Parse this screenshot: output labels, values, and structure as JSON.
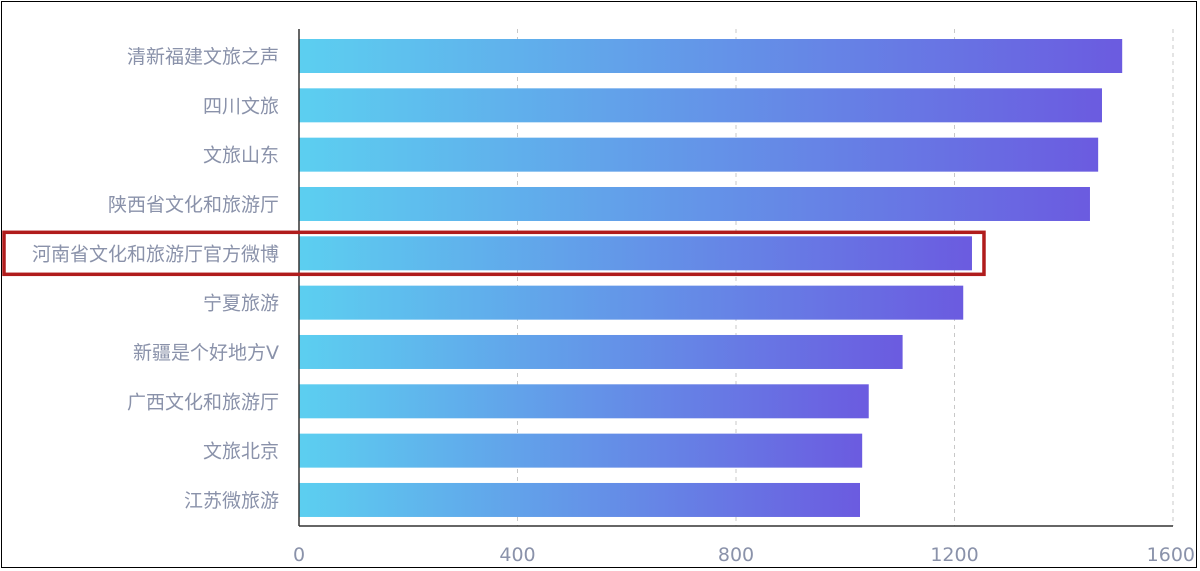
{
  "chart_data": {
    "type": "bar",
    "orientation": "horizontal",
    "categories": [
      "清新福建文旅之声",
      "四川文旅",
      "文旅山东",
      "陕西省文化和旅游厅",
      "河南省文化和旅游厅官方微博",
      "宁夏旅游",
      "新疆是个好地方V",
      "广西文化和旅游厅",
      "文旅北京",
      "江苏微旅游"
    ],
    "values": [
      1507,
      1470,
      1463,
      1448,
      1232,
      1216,
      1105,
      1043,
      1031,
      1027
    ],
    "xlim": [
      0,
      1600
    ],
    "xticks": [
      "0",
      "400",
      "800",
      "1200",
      "1600"
    ],
    "grid": "vertical dashed",
    "highlighted_category": "河南省文化和旅游厅官方微博",
    "colors": {
      "bar_gradient_start": "#5ccff0",
      "bar_gradient_end": "#6b5be0",
      "highlight_box": "#b01c1c",
      "axis": "#333333",
      "grid": "#c8c8c8",
      "label": "#8a92aa"
    }
  }
}
